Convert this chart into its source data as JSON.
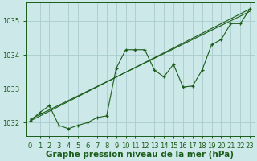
{
  "title": "Graphe pression niveau de la mer (hPa)",
  "bg_color": "#cce8e8",
  "grid_color": "#aacccc",
  "line_color": "#1a5c1a",
  "marker_color": "#1a5c1a",
  "xlim": [
    -0.5,
    23.5
  ],
  "ylim": [
    1031.6,
    1035.55
  ],
  "yticks": [
    1032,
    1033,
    1034,
    1035
  ],
  "xticks": [
    0,
    1,
    2,
    3,
    4,
    5,
    6,
    7,
    8,
    9,
    10,
    11,
    12,
    13,
    14,
    15,
    16,
    17,
    18,
    19,
    20,
    21,
    22,
    23
  ],
  "series1_x": [
    0,
    1,
    2,
    3,
    4,
    5,
    6,
    7,
    8,
    9,
    10,
    11,
    12,
    13,
    14,
    15,
    16,
    17,
    18,
    19,
    20,
    21,
    22,
    23
  ],
  "series1_y": [
    1032.05,
    1032.3,
    1032.5,
    1031.92,
    1031.82,
    1031.92,
    1032.0,
    1032.15,
    1032.2,
    1033.6,
    1034.15,
    1034.15,
    1034.15,
    1033.55,
    1033.35,
    1033.72,
    1033.05,
    1033.08,
    1033.55,
    1034.3,
    1034.45,
    1034.92,
    1034.92,
    1035.35
  ],
  "trend1_x": [
    0,
    23
  ],
  "trend1_y": [
    1032.05,
    1035.35
  ],
  "trend2_x": [
    0,
    23
  ],
  "trend2_y": [
    1032.1,
    1035.28
  ],
  "xlabel_fontsize": 7.5,
  "tick_fontsize": 6.0
}
